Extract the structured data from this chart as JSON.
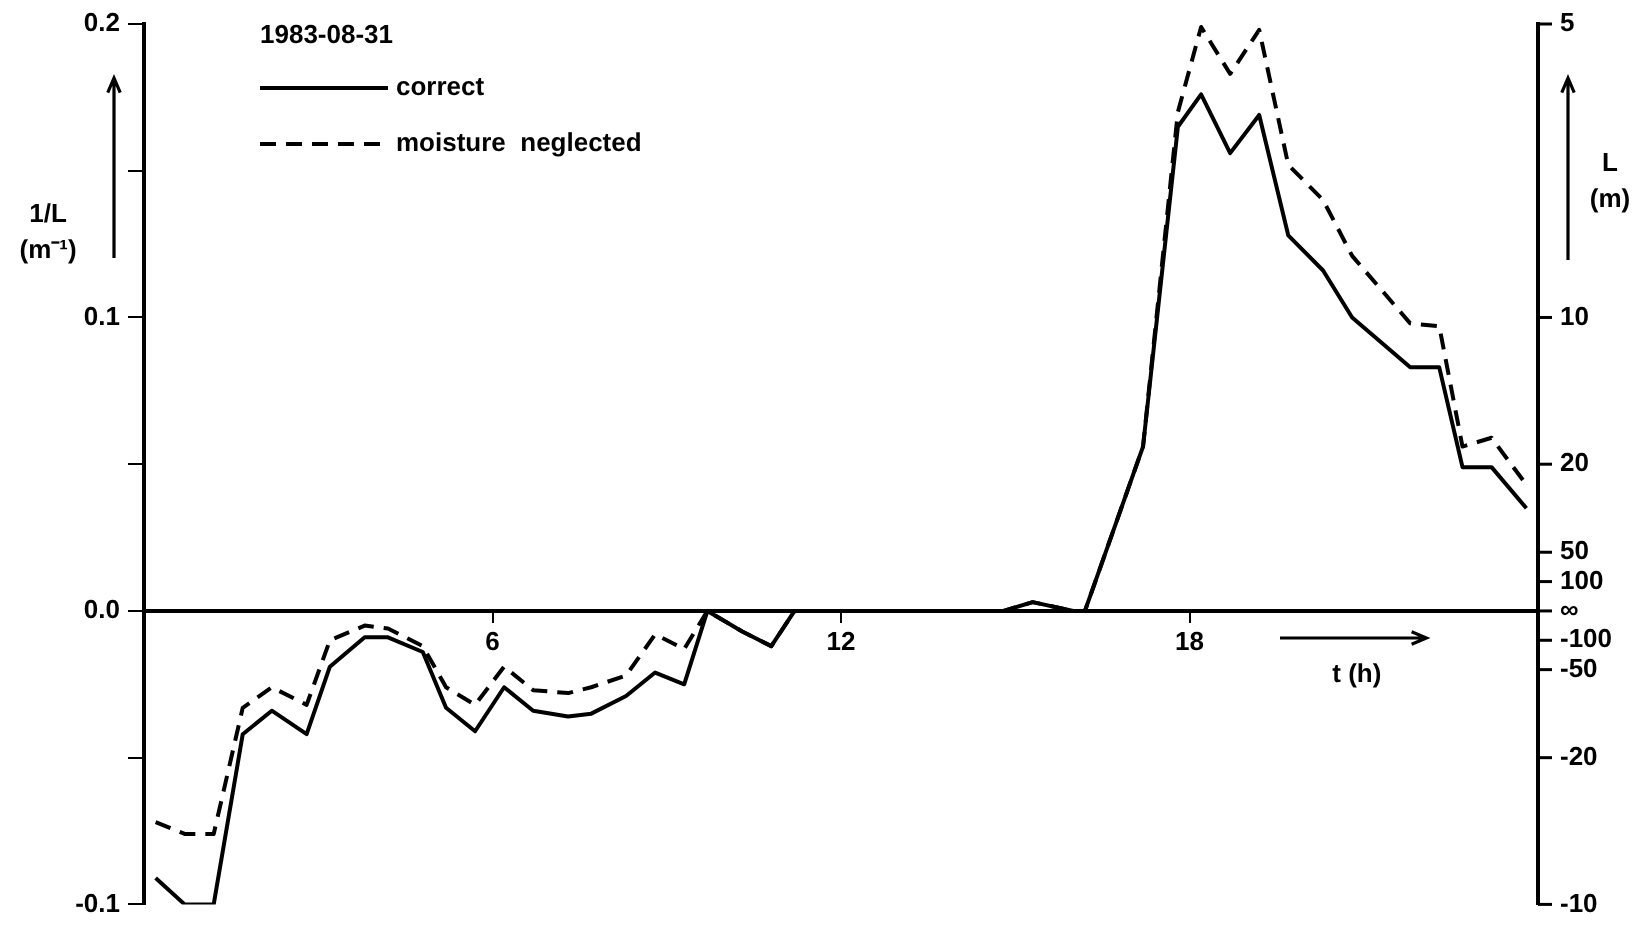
{
  "chart_data": {
    "type": "line",
    "legend_title": "1983-08-31",
    "xlabel": "t (h)",
    "ylabel": "1/L (m⁻¹)",
    "y2label": "L (m)",
    "x": [
      0.2,
      0.7,
      1.2,
      1.7,
      2.2,
      2.8,
      3.2,
      3.8,
      4.2,
      4.8,
      5.2,
      5.7,
      6.2,
      6.7,
      7.3,
      7.7,
      8.3,
      8.8,
      9.3,
      9.7,
      10.3,
      10.8,
      11.2,
      14.8,
      15.3,
      16.0,
      16.2,
      17.2,
      17.8,
      18.2,
      18.7,
      19.2,
      19.7,
      20.3,
      20.8,
      21.8,
      22.3,
      22.7,
      23.2,
      23.8
    ],
    "series": [
      {
        "name": "correct",
        "color": "#000000",
        "line_style": "solid",
        "values": [
          -0.091,
          -0.1,
          -0.1,
          -0.042,
          -0.034,
          -0.042,
          -0.019,
          -0.009,
          -0.009,
          -0.014,
          -0.033,
          -0.041,
          -0.026,
          -0.034,
          -0.036,
          -0.035,
          -0.029,
          -0.021,
          -0.025,
          0,
          -0.007,
          -0.012,
          0,
          0,
          0.003,
          0,
          0,
          0.056,
          0.165,
          0.176,
          0.156,
          0.169,
          0.128,
          0.116,
          0.1,
          0.083,
          0.083,
          0.049,
          0.049,
          0.035
        ]
      },
      {
        "name": "moisture  neglected",
        "color": "#000000",
        "line_style": "dashed",
        "values": [
          -0.072,
          -0.076,
          -0.076,
          -0.033,
          -0.026,
          -0.032,
          -0.01,
          -0.005,
          -0.006,
          -0.012,
          -0.026,
          -0.032,
          -0.019,
          -0.027,
          -0.028,
          -0.026,
          -0.022,
          -0.008,
          -0.013,
          0,
          -0.007,
          -0.012,
          0,
          0,
          0.003,
          0,
          0,
          0.056,
          0.17,
          0.199,
          0.183,
          0.198,
          0.152,
          0.14,
          0.121,
          0.098,
          0.097,
          0.056,
          0.059,
          0.043
        ]
      }
    ],
    "xlim": [
      0,
      24
    ],
    "xticks": [
      6,
      12,
      18
    ],
    "ylim": [
      -0.1,
      0.2
    ],
    "yticks": [
      {
        "value": -0.1,
        "label": "-0.1"
      },
      {
        "value": -0.05,
        "label": null
      },
      {
        "value": 0,
        "label": "0.0"
      },
      {
        "value": 0.05,
        "label": null
      },
      0.1,
      {
        "value": 0.15,
        "label": null
      },
      0.2
    ],
    "annotations": [
      "-10",
      "-20",
      "-50",
      "-100",
      "∞",
      "100",
      "50",
      "20",
      "10",
      "5"
    ],
    "grid": false,
    "legend": "top left",
    "marker": "none"
  }
}
